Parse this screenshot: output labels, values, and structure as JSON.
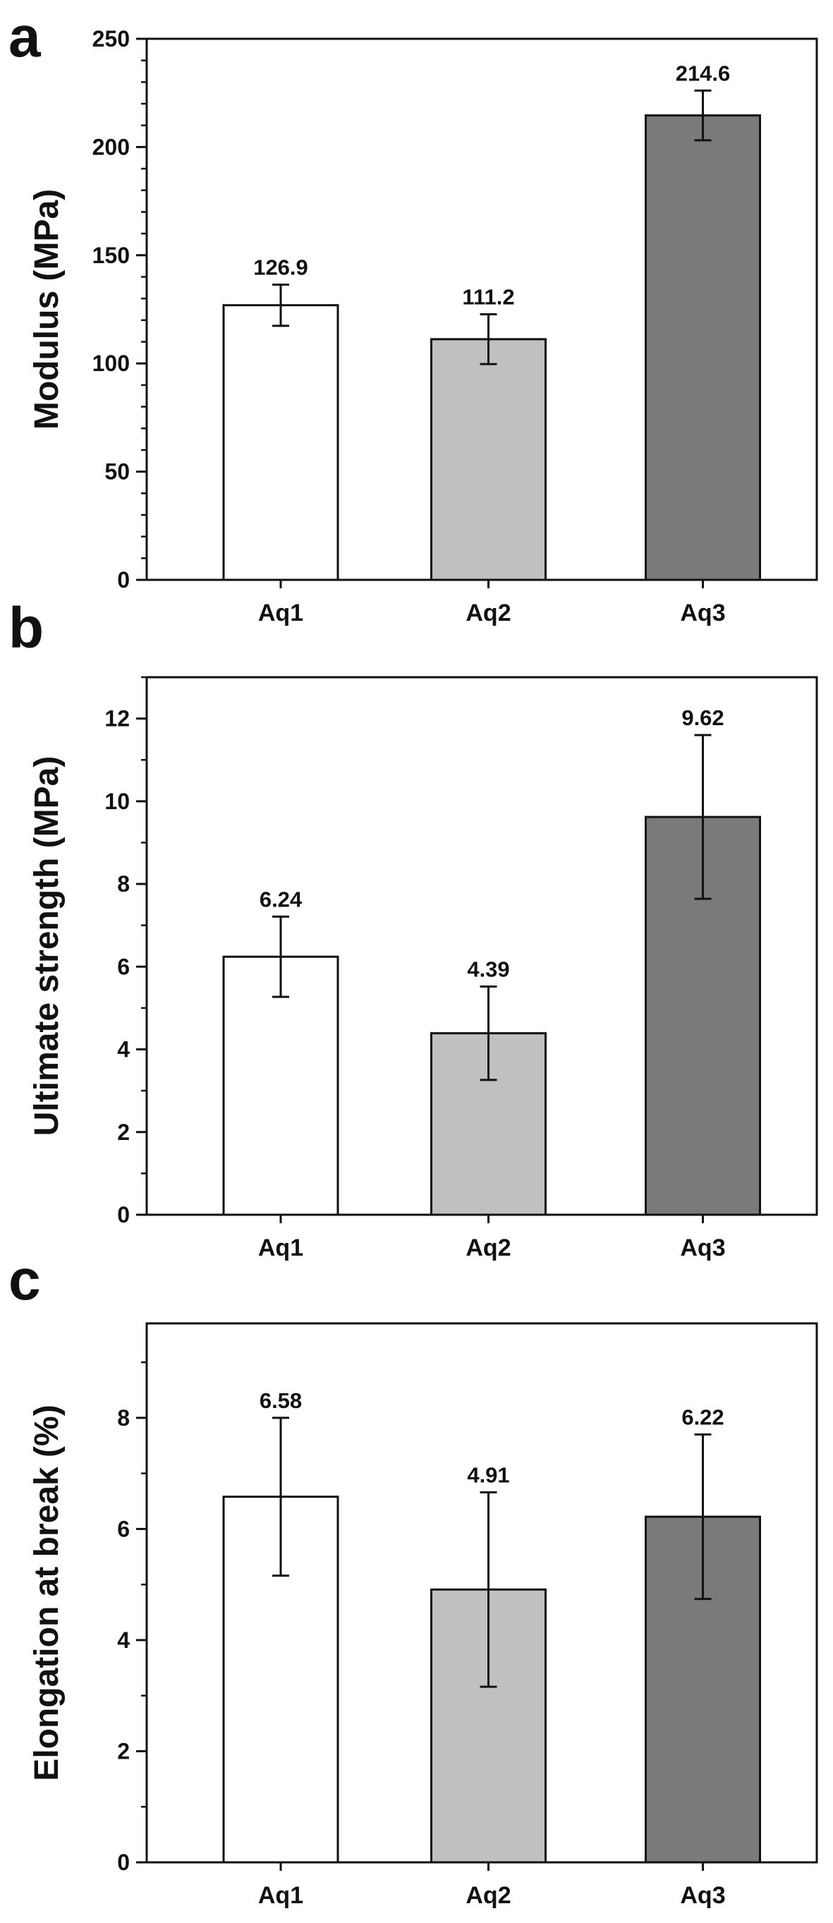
{
  "chart_data": [
    {
      "panel": "a",
      "type": "bar",
      "title": "",
      "xlabel": "",
      "ylabel": "Modulus (MPa)",
      "categories": [
        "Aq1",
        "Aq2",
        "Aq3"
      ],
      "values": [
        126.9,
        111.2,
        214.6
      ],
      "value_labels": [
        "126.9",
        "111.2",
        "214.6"
      ],
      "error": [
        9.5,
        11.5,
        11.5
      ],
      "bar_colors": [
        "#ffffff",
        "#c0c0c0",
        "#7a7a7a"
      ],
      "ylim": [
        0,
        250
      ],
      "yticks": [
        0,
        50,
        100,
        150,
        200,
        250
      ],
      "minor_step": 10,
      "grid": false,
      "legend": "none"
    },
    {
      "panel": "b",
      "type": "bar",
      "title": "",
      "xlabel": "",
      "ylabel": "Ultimate strength (MPa)",
      "categories": [
        "Aq1",
        "Aq2",
        "Aq3"
      ],
      "values": [
        6.24,
        4.39,
        9.62
      ],
      "value_labels": [
        "6.24",
        "4.39",
        "9.62"
      ],
      "error": [
        0.97,
        1.13,
        1.98
      ],
      "bar_colors": [
        "#ffffff",
        "#c0c0c0",
        "#7a7a7a"
      ],
      "ylim": [
        0,
        13
      ],
      "yticks": [
        0,
        2,
        4,
        6,
        8,
        10,
        12
      ],
      "minor_step": 1,
      "grid": false,
      "legend": "none"
    },
    {
      "panel": "c",
      "type": "bar",
      "title": "",
      "xlabel": "",
      "ylabel": "Elongation at break (%)",
      "categories": [
        "Aq1",
        "Aq2",
        "Aq3"
      ],
      "values": [
        6.58,
        4.91,
        6.22
      ],
      "value_labels": [
        "6.58",
        "4.91",
        "6.22"
      ],
      "error": [
        1.42,
        1.75,
        1.48
      ],
      "bar_colors": [
        "#ffffff",
        "#c0c0c0",
        "#7a7a7a"
      ],
      "ylim": [
        0,
        9.7
      ],
      "yticks": [
        0,
        2,
        4,
        6,
        8
      ],
      "minor_step": 1,
      "grid": false,
      "legend": "none"
    }
  ]
}
